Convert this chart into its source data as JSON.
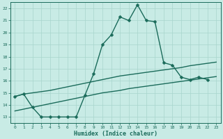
{
  "xlabel": "Humidex (Indice chaleur)",
  "background_color": "#c8ebe5",
  "grid_color": "#a8d5cc",
  "line_color": "#1a6b5a",
  "xlim": [
    -0.5,
    23.5
  ],
  "ylim": [
    12.5,
    22.5
  ],
  "yticks": [
    13,
    14,
    15,
    16,
    17,
    18,
    19,
    20,
    21,
    22
  ],
  "xticks": [
    0,
    1,
    2,
    3,
    4,
    5,
    6,
    7,
    8,
    9,
    10,
    11,
    12,
    13,
    14,
    15,
    16,
    17,
    18,
    19,
    20,
    21,
    22,
    23
  ],
  "series1_x": [
    0,
    1,
    2,
    3,
    4,
    5,
    6,
    7,
    8,
    9,
    10,
    11,
    12,
    13,
    14,
    15,
    16,
    17,
    18,
    19,
    20,
    21,
    22
  ],
  "series1_y": [
    14.7,
    14.9,
    13.8,
    13.0,
    13.0,
    13.0,
    13.0,
    13.0,
    14.8,
    16.6,
    19.0,
    19.8,
    21.3,
    21.0,
    22.3,
    21.0,
    20.9,
    17.5,
    17.3,
    16.3,
    16.1,
    16.3,
    16.1
  ],
  "series2_x": [
    0,
    1,
    2,
    3,
    4,
    5,
    6,
    7,
    8,
    9,
    10,
    11,
    12,
    13,
    14,
    15,
    16,
    17,
    18,
    19,
    20,
    21,
    22,
    23
  ],
  "series2_y": [
    14.7,
    14.9,
    15.0,
    15.1,
    15.2,
    15.35,
    15.5,
    15.65,
    15.8,
    15.95,
    16.1,
    16.25,
    16.4,
    16.5,
    16.6,
    16.7,
    16.8,
    16.9,
    17.0,
    17.1,
    17.25,
    17.35,
    17.45,
    17.55
  ],
  "series3_x": [
    0,
    1,
    2,
    3,
    4,
    5,
    6,
    7,
    8,
    9,
    10,
    11,
    12,
    13,
    14,
    15,
    16,
    17,
    18,
    19,
    20,
    21,
    22,
    23
  ],
  "series3_y": [
    13.5,
    13.65,
    13.8,
    13.95,
    14.1,
    14.25,
    14.4,
    14.55,
    14.7,
    14.85,
    15.0,
    15.1,
    15.2,
    15.35,
    15.45,
    15.55,
    15.65,
    15.75,
    15.85,
    15.95,
    16.05,
    16.15,
    16.25,
    16.35
  ],
  "marker_size": 2.5,
  "line_width": 1.0
}
